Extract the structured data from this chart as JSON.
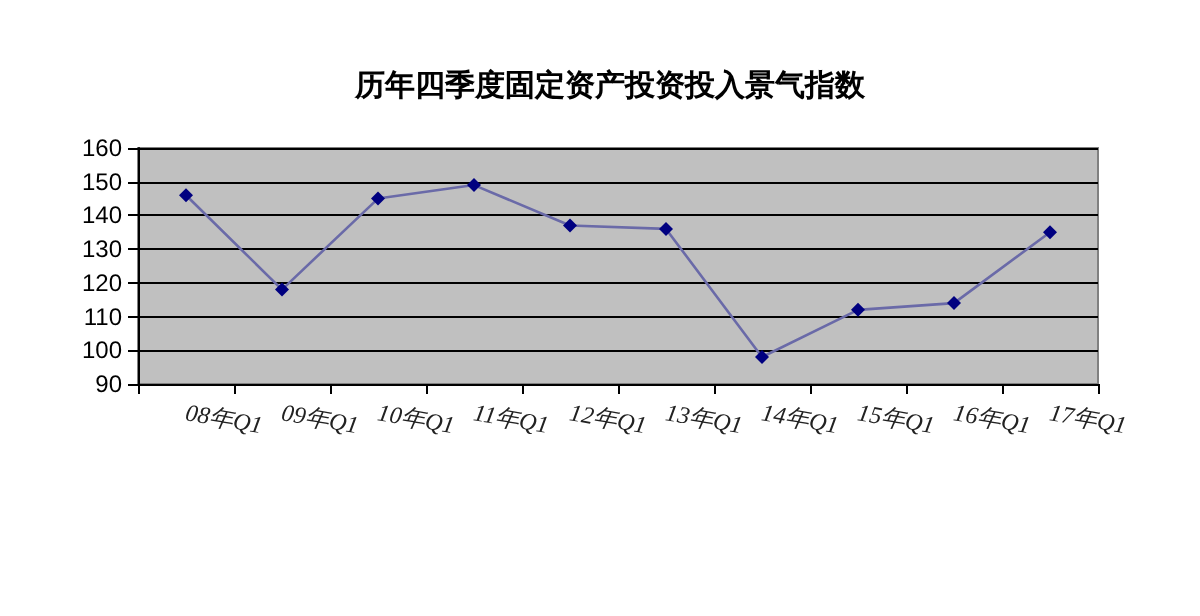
{
  "chart_data": {
    "type": "line",
    "title": "历年四季度固定资产投资投入景气指数",
    "categories": [
      "08年Q1",
      "09年Q1",
      "10年Q1",
      "11年Q1",
      "12年Q1",
      "13年Q1",
      "14年Q1",
      "15年Q1",
      "16年Q1",
      "17年Q1"
    ],
    "series": [
      {
        "color": "#000080",
        "values": [
          146,
          118,
          145,
          149,
          137,
          136,
          98,
          112,
          114,
          135
        ]
      }
    ],
    "ylim": [
      90,
      160
    ],
    "yticks": [
      90,
      100,
      110,
      120,
      130,
      140,
      150,
      160
    ],
    "grid": "y",
    "marker": "diamond",
    "line_style": "solid"
  }
}
